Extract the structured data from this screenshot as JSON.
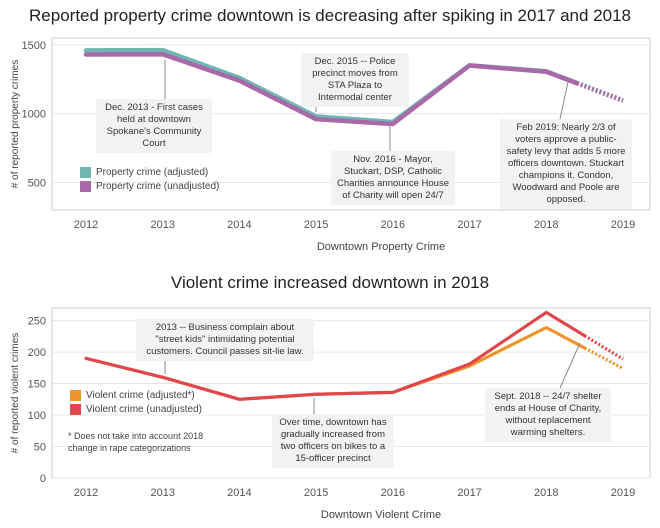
{
  "chart_data": [
    {
      "type": "line",
      "title": "Reported property crime downtown is decreasing after spiking in 2017 and 2018",
      "xlabel": "Downtown Property Crime",
      "ylabel": "# of reported property crimes",
      "x": [
        2012,
        2013,
        2014,
        2015,
        2016,
        2017,
        2018,
        2019
      ],
      "ylim": [
        300,
        1550
      ],
      "yticks": [
        500,
        1000,
        1500
      ],
      "series": [
        {
          "name": "Property crime (adjusted)",
          "color": "#6fb5b0",
          "values": [
            1460,
            1462,
            1260,
            980,
            940,
            1352,
            1308,
            1098
          ]
        },
        {
          "name": "Property crime (unadjusted)",
          "color": "#a968a8",
          "values": [
            1430,
            1432,
            1240,
            960,
            925,
            1350,
            1305,
            1095
          ]
        }
      ],
      "projection_from": 2018.4,
      "legend": "bottom-left",
      "annotations": [
        "Dec. 2013 - First cases held at downtown Spokane's Community Court",
        "Dec. 2015 -- Police precinct moves from STA Plaza to Intermodal center",
        "Nov. 2016 - Mayor, Stuckart, DSP, Catholic Charities announce House of Charity will open 24/7",
        "Feb 2019: Nearly 2/3 of voters approve a public-safety levy that adds 5 more officers downtown. Stuckart champions it. Condon, Woodward and Poole are opposed."
      ]
    },
    {
      "type": "line",
      "title": "Violent crime increased downtown in 2018",
      "xlabel": "Downtown Violent Crime",
      "ylabel": "# of reported violent crimes",
      "x": [
        2012,
        2013,
        2014,
        2015,
        2016,
        2017,
        2018,
        2019
      ],
      "ylim": [
        0,
        270
      ],
      "yticks": [
        0,
        50,
        100,
        150,
        200,
        250
      ],
      "series": [
        {
          "name": "Violent crime (adjusted*)",
          "color": "#f0932b",
          "values": [
            190,
            160,
            125,
            133,
            136,
            178,
            239,
            174
          ]
        },
        {
          "name": "Violent crime (unadjusted)",
          "color": "#e0474c",
          "values": [
            190,
            160,
            125,
            133,
            136,
            181,
            263,
            189
          ]
        }
      ],
      "projection_from": 2018.5,
      "legend": "left",
      "annotations": [
        "2013 -- Business complain about \"street kids\" intimidating potential customers. Council passes sit-lie law.",
        "Over time, downtown has gradually increased from two officers on bikes to a 15-officer precinct",
        "Sept. 2018 -- 24/7 shelter ends at House of Charity, without replacement warming shelters."
      ],
      "footnote": "* Does not take into account 2018 change in rape categorizations"
    }
  ]
}
